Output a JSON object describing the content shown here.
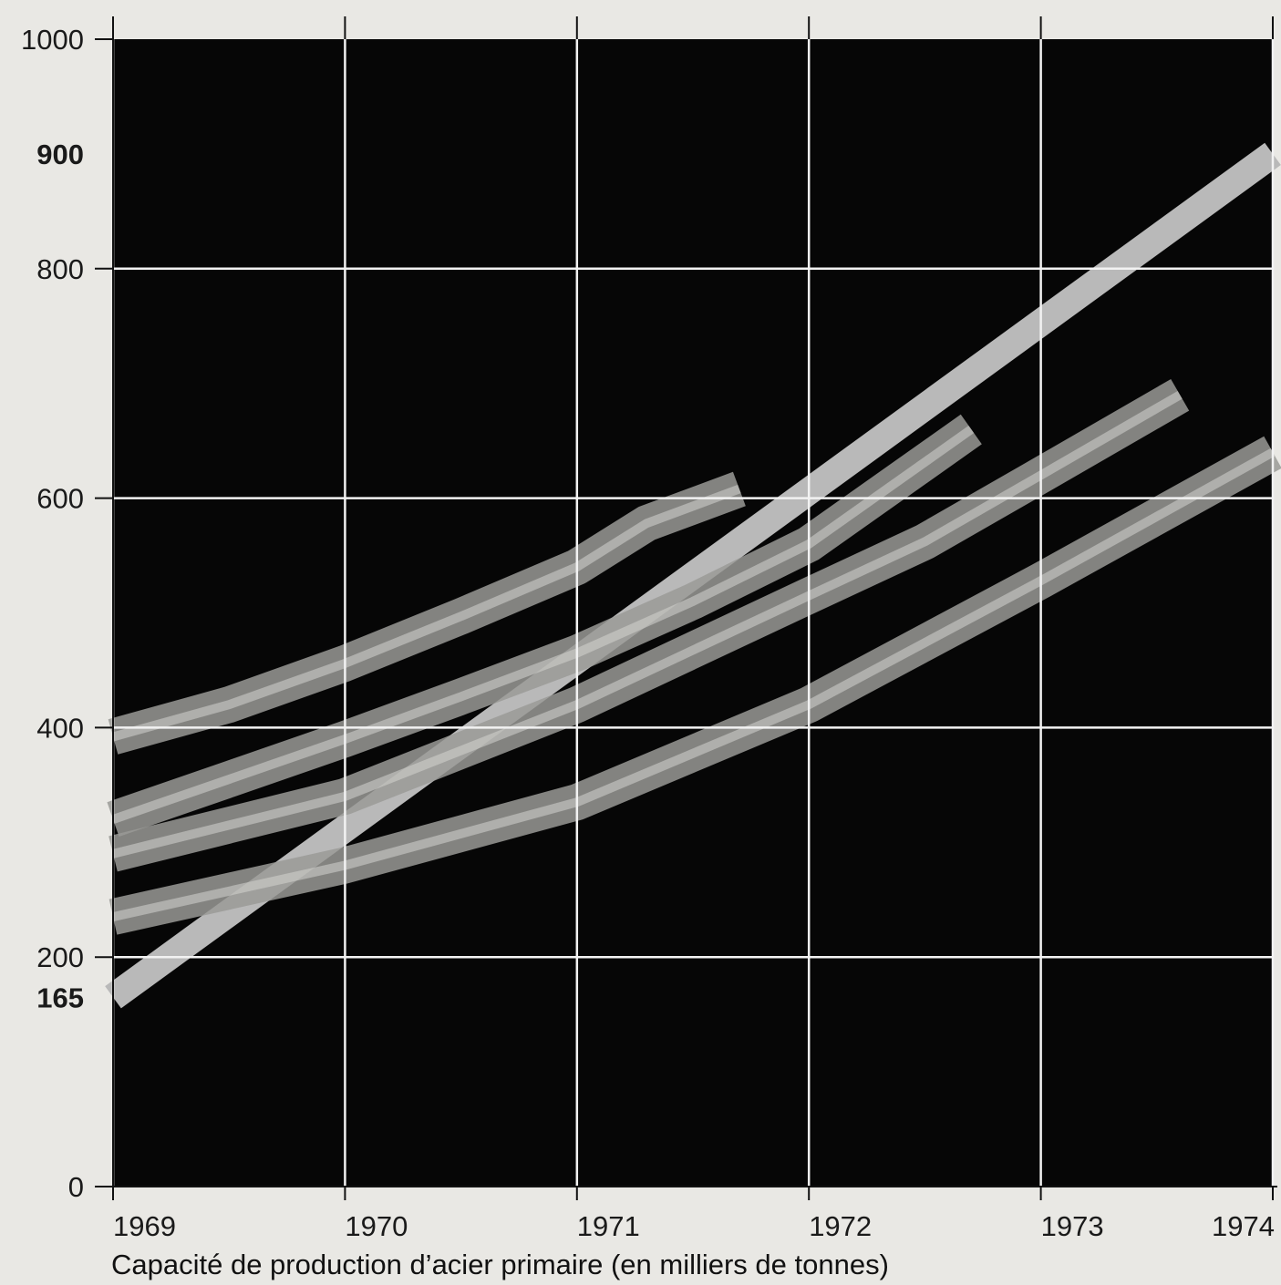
{
  "chart_data": {
    "type": "line",
    "title": "",
    "xlabel": "Capacité de production d’acier primaire (en milliers de tonnes)",
    "ylabel": "",
    "xlim": [
      1969,
      1974
    ],
    "ylim": [
      0,
      1000
    ],
    "x_ticks": [
      "1969",
      "1970",
      "1971",
      "1972",
      "1973",
      "1974"
    ],
    "y_ticks": [
      {
        "value": 1000,
        "label": "1000",
        "bold": false
      },
      {
        "value": 900,
        "label": "900",
        "bold": true
      },
      {
        "value": 800,
        "label": "800",
        "bold": false
      },
      {
        "value": 600,
        "label": "600",
        "bold": false
      },
      {
        "value": 400,
        "label": "400",
        "bold": false
      },
      {
        "value": 200,
        "label": "200",
        "bold": false
      },
      {
        "value": 165,
        "label": "165",
        "bold": true
      },
      {
        "value": 0,
        "label": "0",
        "bold": false
      }
    ],
    "grid": true,
    "colors": {
      "background": "#e9e8e4",
      "plot": "#060606",
      "grid": "#f2f2f2",
      "straight_band": "#b9b9b9",
      "curved_band": "#9a9a96"
    },
    "series": [
      {
        "style": "straight-band",
        "x": [
          1969,
          1974
        ],
        "y": [
          165,
          900
        ]
      },
      {
        "style": "curved-band",
        "x": [
          1969,
          1969.5,
          1970,
          1970.5,
          1971,
          1971.3,
          1971.7
        ],
        "y": [
          392,
          420,
          456,
          497,
          540,
          578,
          608
        ]
      },
      {
        "style": "curved-band",
        "x": [
          1969,
          1969.5,
          1970,
          1970.5,
          1971,
          1971.5,
          1972,
          1972.7
        ],
        "y": [
          320,
          355,
          390,
          427,
          465,
          510,
          560,
          660
        ]
      },
      {
        "style": "curved-band",
        "x": [
          1969,
          1970,
          1971,
          1972,
          1972.5,
          1973,
          1973.6
        ],
        "y": [
          290,
          340,
          420,
          515,
          562,
          620,
          690
        ]
      },
      {
        "style": "curved-band",
        "x": [
          1969,
          1970,
          1971,
          1972,
          1973,
          1974
        ],
        "y": [
          235,
          280,
          335,
          420,
          528,
          640
        ]
      }
    ]
  }
}
